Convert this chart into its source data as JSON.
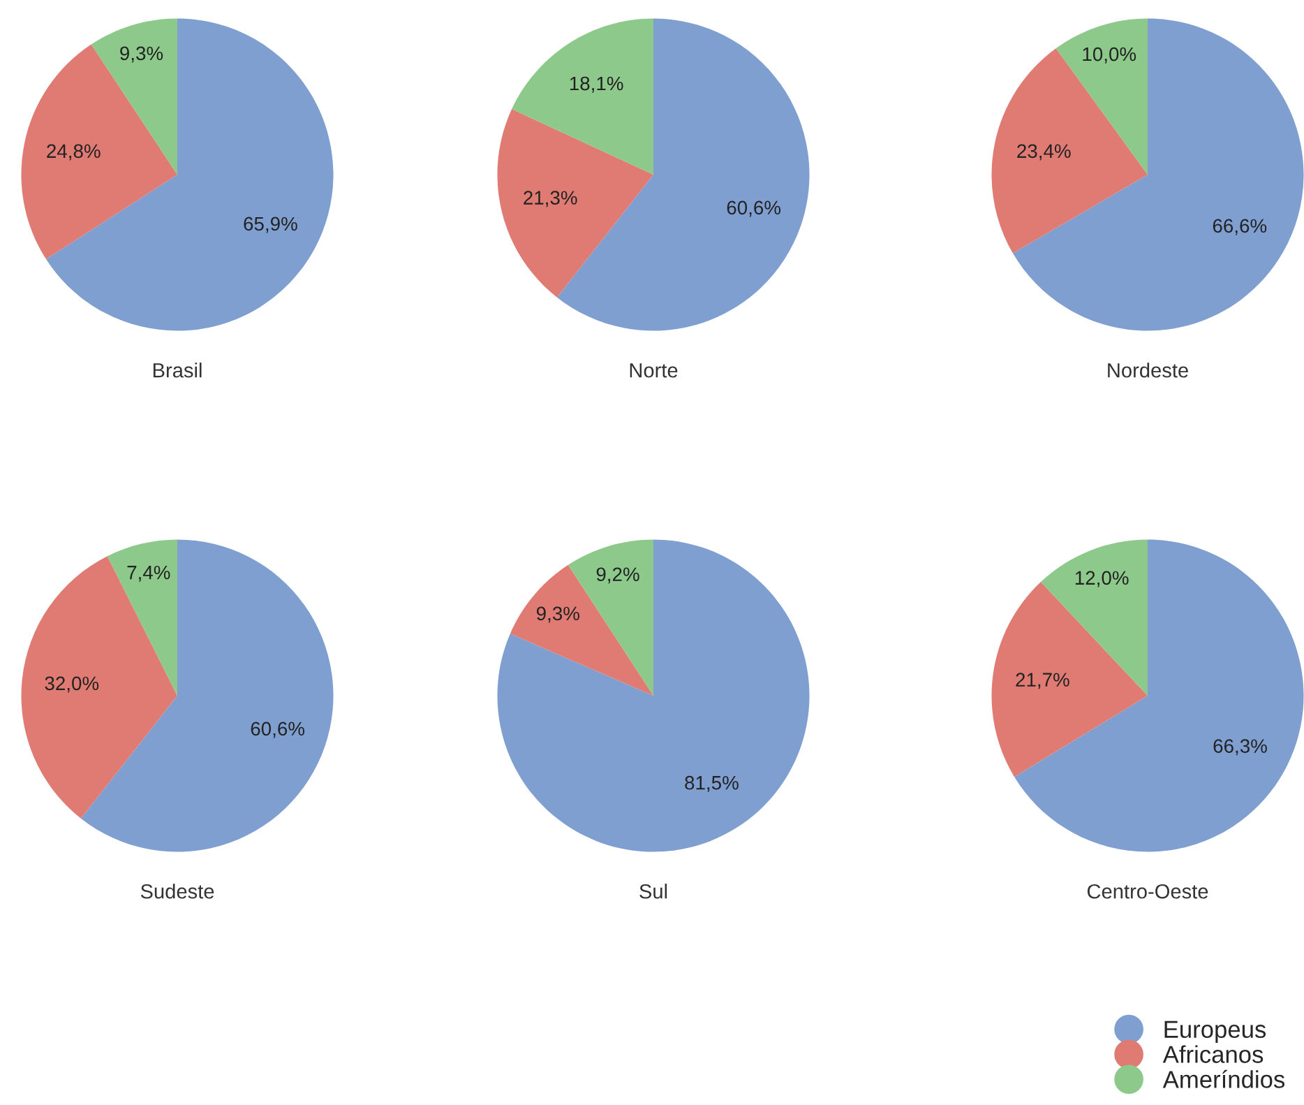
{
  "chart_data": [
    {
      "type": "pie",
      "title": "Brasil",
      "categories": [
        "Europeus",
        "Africanos",
        "Ameríndios"
      ],
      "values": [
        65.9,
        24.8,
        9.3
      ],
      "value_labels": [
        "65,9%",
        "24,8%",
        "9,3%"
      ],
      "colors": [
        "#7f9fd0",
        "#e07b74",
        "#8dc98a"
      ],
      "legend": "bottom right"
    },
    {
      "type": "pie",
      "title": "Norte",
      "categories": [
        null,
        null,
        null
      ],
      "values": [
        60.6,
        21.3,
        18.1
      ],
      "value_labels": [
        "60,6%",
        "21,3%",
        "18,1%"
      ],
      "colors": [
        "#7f9fd0",
        "#e07b74",
        "#8dc98a"
      ]
    },
    {
      "type": "pie",
      "title": "Nordeste",
      "categories": [
        null,
        null,
        null
      ],
      "values": [
        66.6,
        23.4,
        10.0
      ],
      "value_labels": [
        "66,6%",
        "23,4%",
        "10,0%"
      ],
      "colors": [
        "#7f9fd0",
        "#e07b74",
        "#8dc98a"
      ]
    },
    {
      "type": "pie",
      "title": "Sudeste",
      "categories": [
        null,
        null,
        null
      ],
      "values": [
        60.6,
        32.0,
        7.4
      ],
      "value_labels": [
        "60,6%",
        "32,0%",
        "7,4%"
      ],
      "colors": [
        "#7f9fd0",
        "#e07b74",
        "#8dc98a"
      ]
    },
    {
      "type": "pie",
      "title": "Sul",
      "categories": [
        null,
        null,
        null
      ],
      "values": [
        81.5,
        9.3,
        9.2
      ],
      "value_labels": [
        "81,5%",
        "9,3%",
        "9,2%"
      ],
      "colors": [
        "#7f9fd0",
        "#e07b74",
        "#8dc98a"
      ]
    },
    {
      "type": "pie",
      "title": "Centro-Oeste",
      "categories": [
        null,
        null,
        null
      ],
      "values": [
        66.3,
        21.7,
        12.0
      ],
      "value_labels": [
        "66,3%",
        "21,7%",
        "12,0%"
      ],
      "colors": [
        "#7f9fd0",
        "#e07b74",
        "#8dc98a"
      ]
    }
  ]
}
